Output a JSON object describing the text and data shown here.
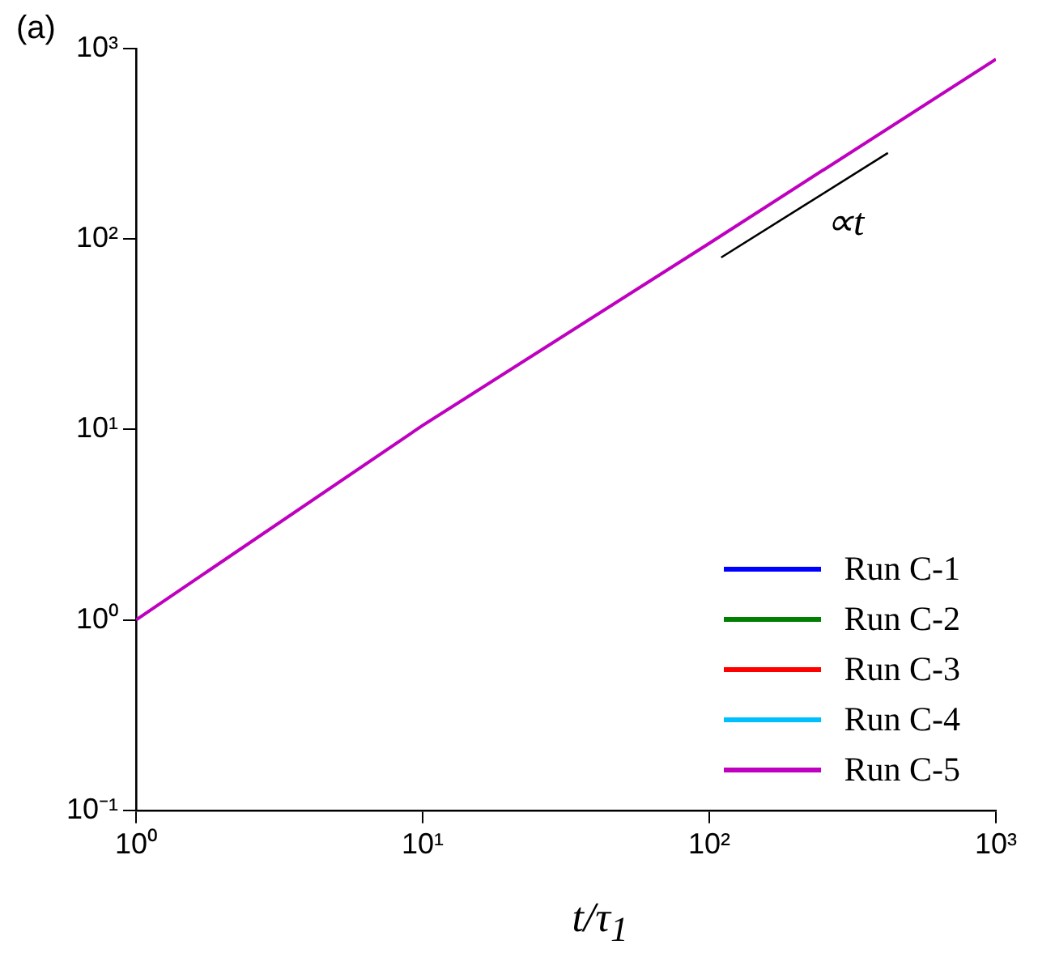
{
  "chart_data": {
    "type": "line",
    "xlabel": "t/τ$_{1}$",
    "log": "xy",
    "grid": false,
    "legend": "bottom right",
    "marker": "none",
    "line_style": "solid",
    "xlim": [
      1,
      1000
    ],
    "ylim": [
      0.1,
      1000
    ],
    "xticks": [
      {
        "value": 1,
        "label": "10⁰"
      },
      {
        "value": 10,
        "label": "10¹"
      },
      {
        "value": 100,
        "label": "10²"
      },
      {
        "value": 1000,
        "label": "10³"
      }
    ],
    "yticks": [
      {
        "value": 0.1,
        "label": "10⁻¹"
      },
      {
        "value": 1,
        "label": "10⁰"
      },
      {
        "value": 10,
        "label": "10¹"
      },
      {
        "value": 100,
        "label": "10²"
      },
      {
        "value": 1000,
        "label": "10³"
      }
    ],
    "annotations": [
      "(a)",
      "∝t"
    ],
    "series": [
      {
        "name": "Run C-1",
        "color": "#0000ff"
      },
      {
        "name": "Run C-2",
        "color": "#007f00"
      },
      {
        "name": "Run C-3",
        "color": "#ff0000"
      },
      {
        "name": "Run C-4",
        "color": "#00bfff"
      },
      {
        "name": "Run C-5",
        "color": "#bf00bf",
        "x": [
          1,
          10,
          100,
          1000
        ],
        "values": [
          1,
          10.5,
          95,
          880
        ]
      },
      {
        "color": "#000000",
        "x": [
          110,
          420
        ],
        "values": [
          80,
          283
        ]
      }
    ]
  }
}
